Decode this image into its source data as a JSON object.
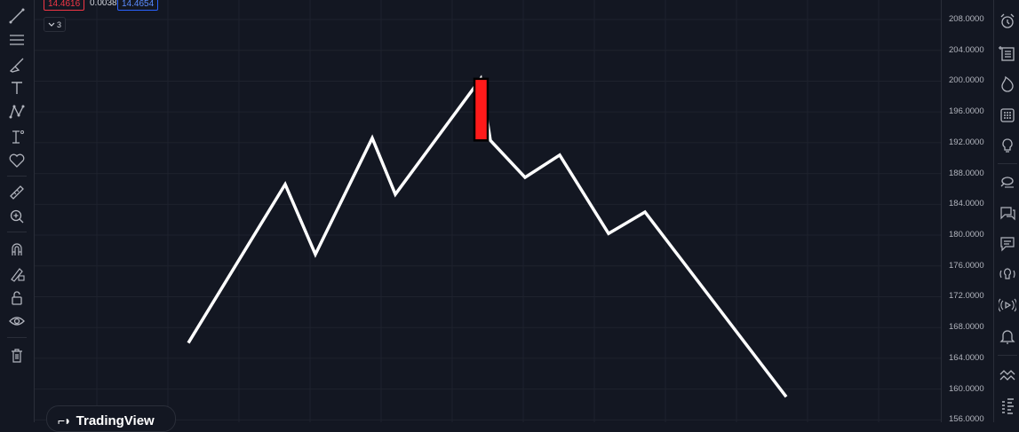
{
  "legend": {
    "value_left": "14.4616",
    "value_mid": "0.0038",
    "value_right": "14.4654",
    "collapse_count": "3"
  },
  "price_scale": {
    "labels": [
      "208.0000",
      "204.0000",
      "200.0000",
      "196.0000",
      "192.0000",
      "188.0000",
      "184.0000",
      "180.0000",
      "176.0000",
      "172.0000",
      "168.0000",
      "164.0000",
      "160.0000",
      "156.0000"
    ]
  },
  "logo": {
    "text": "TradingView"
  },
  "left_toolbar": {
    "icons": [
      "trend-line-icon",
      "horizontal-lines-icon",
      "brush-icon",
      "text-icon",
      "pattern-icon",
      "prediction-icon",
      "heart-icon",
      "ruler-icon",
      "zoom-in-icon",
      "magnet-icon",
      "lock-drawing-icon",
      "unlock-icon",
      "eye-icon",
      "trash-icon"
    ]
  },
  "right_toolbar": {
    "icons": [
      "alarm-clock-icon",
      "watchlist-icon",
      "hotlist-icon",
      "calendar-icon",
      "ideas-bulb-icon",
      "chat-icon",
      "chat-bubble-icon",
      "message-icon",
      "broadcast-icon",
      "stream-icon",
      "bell-icon",
      "waves-icon",
      "dom-icon"
    ]
  },
  "colors": {
    "background": "#131722",
    "line": "#ffffff",
    "candle": "#ff1a1a",
    "candle_border": "#000000",
    "grid": "#1e222d"
  },
  "chart_data": {
    "type": "line",
    "ylim": [
      156,
      210
    ],
    "line_points": [
      {
        "x": 1,
        "y": 166.0
      },
      {
        "x": 2,
        "y": 186.6
      },
      {
        "x": 3,
        "y": 177.5
      },
      {
        "x": 4,
        "y": 192.6
      },
      {
        "x": 5,
        "y": 185.3
      },
      {
        "x": 6,
        "y": 200.3
      },
      {
        "x": 7,
        "y": 192.3
      },
      {
        "x": 8,
        "y": 187.5
      },
      {
        "x": 9,
        "y": 190.4
      },
      {
        "x": 10,
        "y": 180.2
      },
      {
        "x": 11,
        "y": 183.0
      },
      {
        "x": 12,
        "y": 159.0
      }
    ],
    "candle": {
      "x": 6,
      "open": 200.3,
      "close": 192.3,
      "high": 200.3,
      "low": 192.3
    }
  }
}
